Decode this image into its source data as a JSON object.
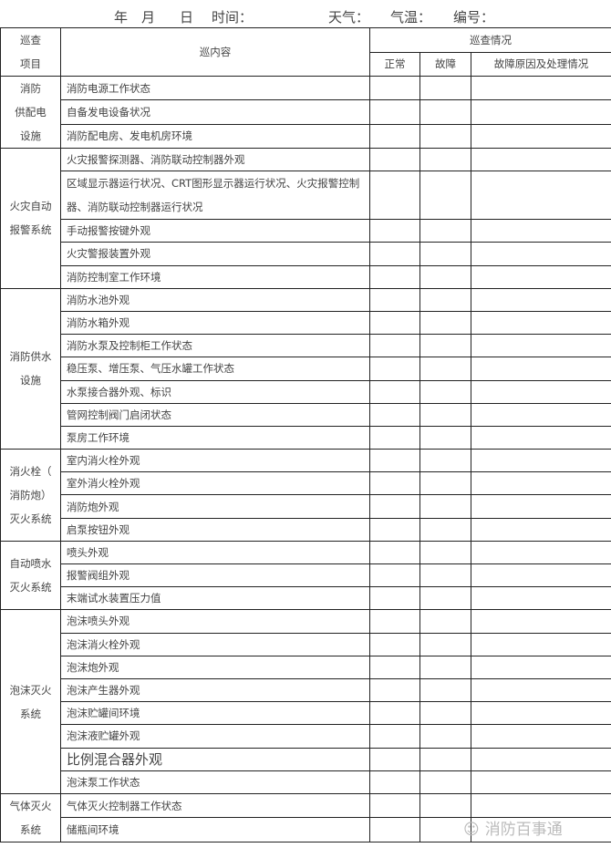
{
  "title": {
    "year": "年",
    "month": "月",
    "day": "日",
    "time": "时间：",
    "weather": "天气：",
    "temp": "气温：",
    "number": "编号："
  },
  "header": {
    "item_line1": "巡查",
    "item_line2": "项目",
    "content": "巡内容",
    "status": "巡查情况",
    "normal": "正常",
    "fault": "故障",
    "reason": "故障原因及处理情况"
  },
  "sections": [
    {
      "lines": [
        "消防",
        "供配电",
        "设施"
      ],
      "items": [
        "消防电源工作状态",
        "自备发电设备状况",
        "消防配电房、发电机房环境"
      ]
    },
    {
      "lines": [
        "火灾自动",
        "报警系统"
      ],
      "items": [
        "火灾报警探测器、消防联动控制器外观",
        "区域显示器运行状况、CRT图形显示器运行状况、火灾报警控制器、消防联动控制器运行状况",
        "手动报警按键外观",
        "火灾警报装置外观",
        "消防控制室工作环境"
      ]
    },
    {
      "lines": [
        "消防供水",
        "设施"
      ],
      "items": [
        "消防水池外观",
        "消防水箱外观",
        "消防水泵及控制柜工作状态",
        "稳压泵、增压泵、气压水罐工作状态",
        "水泵接合器外观、标识",
        "管网控制阀门启闭状态",
        "泵房工作环境"
      ]
    },
    {
      "lines": [
        "消火栓（",
        "消防炮）",
        "灭火系统"
      ],
      "items": [
        "室内消火栓外观",
        "室外消火栓外观",
        "消防炮外观",
        "启泵按钮外观"
      ]
    },
    {
      "lines": [
        "自动喷水",
        "灭火系统"
      ],
      "items": [
        "喷头外观",
        "报警阀组外观",
        "末端试水装置压力值"
      ]
    },
    {
      "lines": [
        "泡沫灭火",
        "系统"
      ],
      "items": [
        "泡沫喷头外观",
        "泡沫消火栓外观",
        "泡沫炮外观",
        "泡沫产生器外观",
        "泡沫贮罐间环境",
        "泡沫液贮罐外观",
        "比例混合器外观",
        "泡沫泵工作状态"
      ]
    },
    {
      "lines": [
        "气体灭火",
        "系统"
      ],
      "items": [
        "气体灭火控制器工作状态",
        "储瓶间环境"
      ]
    }
  ],
  "watermark": "消防百事通"
}
